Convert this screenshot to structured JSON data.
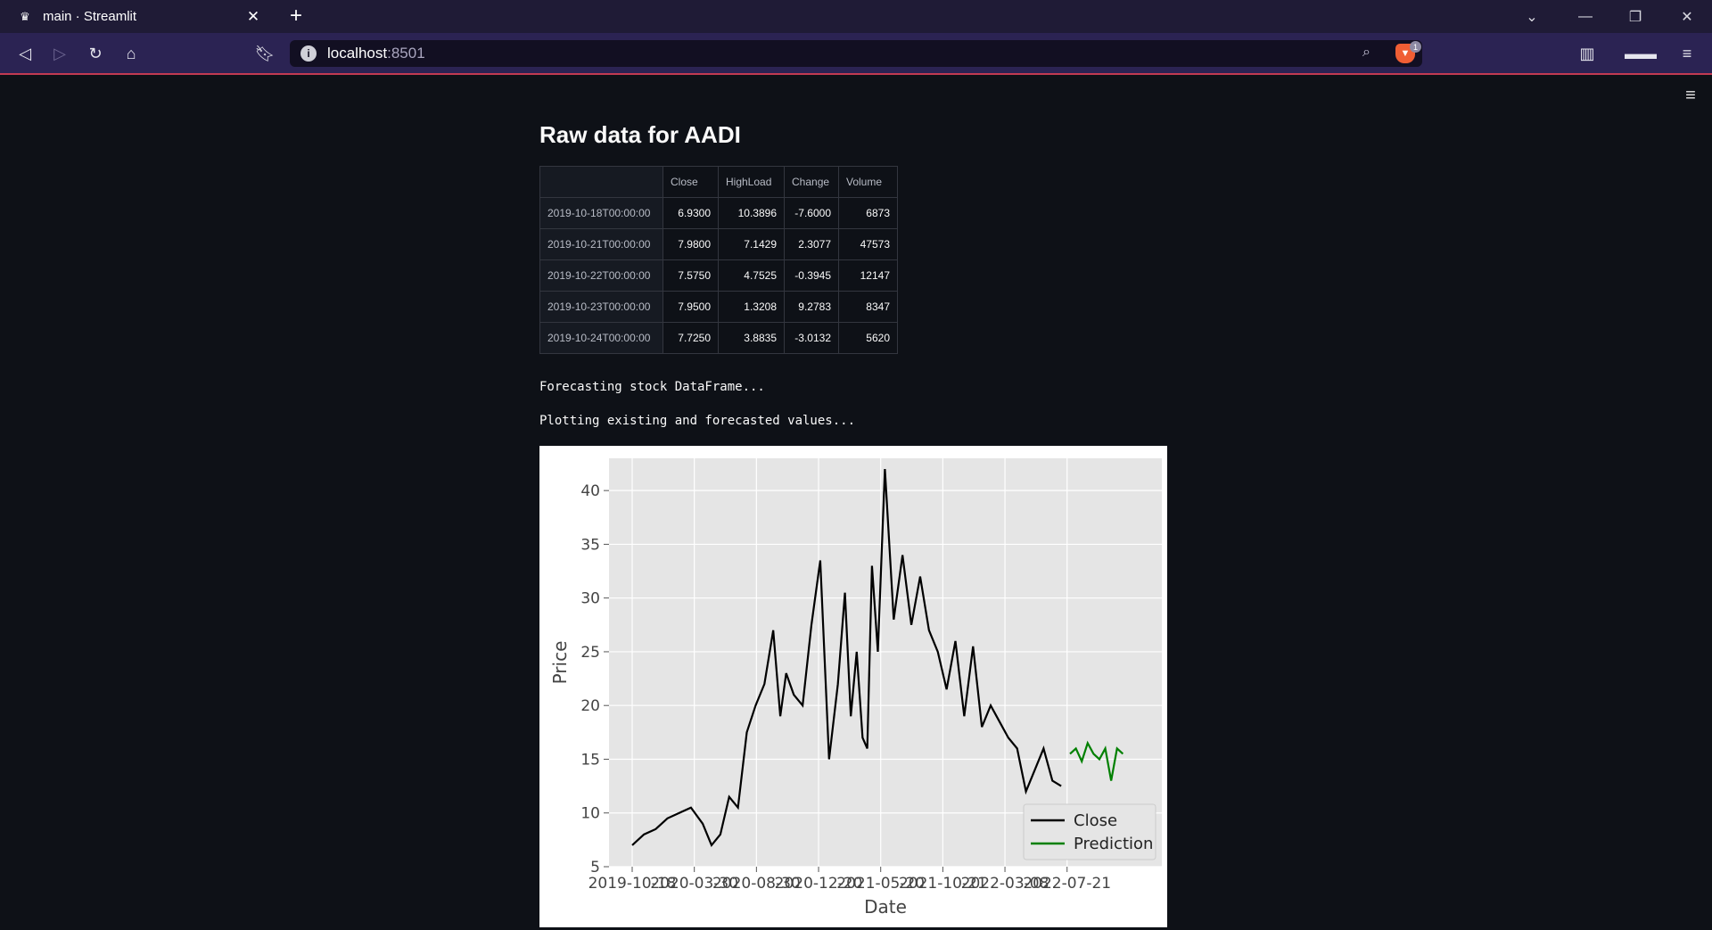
{
  "browser": {
    "tab_title": "main · Streamlit",
    "url_host": "localhost",
    "url_port": ":8501",
    "shield_count": "1"
  },
  "page": {
    "heading": "Raw data for AADI",
    "table": {
      "columns": [
        "",
        "Close",
        "HighLoad",
        "Change",
        "Volume"
      ],
      "rows": [
        [
          "2019-10-18T00:00:00",
          "6.9300",
          "10.3896",
          "-7.6000",
          "6873"
        ],
        [
          "2019-10-21T00:00:00",
          "7.9800",
          "7.1429",
          "2.3077",
          "47573"
        ],
        [
          "2019-10-22T00:00:00",
          "7.5750",
          "4.7525",
          "-0.3945",
          "12147"
        ],
        [
          "2019-10-23T00:00:00",
          "7.9500",
          "1.3208",
          "9.2783",
          "8347"
        ],
        [
          "2019-10-24T00:00:00",
          "7.7250",
          "3.8835",
          "-3.0132",
          "5620"
        ]
      ]
    },
    "status_forecasting": "Forecasting stock DataFrame...",
    "status_plotting": "Plotting existing and forecasted values..."
  },
  "chart_data": {
    "type": "line",
    "title": "",
    "xlabel": "Date",
    "ylabel": "Price",
    "ylim": [
      5,
      43
    ],
    "yticks": [
      5,
      10,
      15,
      20,
      25,
      30,
      35,
      40
    ],
    "xtick_labels": [
      "2019-10-18",
      "2020-03-30",
      "2020-08-30",
      "2020-12-20",
      "2021-05-20",
      "2021-10-21",
      "2022-03-08",
      "2022-07-21"
    ],
    "legend": [
      "Close",
      "Prediction"
    ],
    "legend_position": "bottom-right",
    "colors": {
      "Close": "#000000",
      "Prediction": "#008000",
      "plot_bg": "#e5e5e5",
      "grid": "#ffffff"
    },
    "series": [
      {
        "name": "Close",
        "x_index": [
          0,
          20,
          40,
          60,
          80,
          100,
          120,
          135,
          150,
          165,
          180,
          195,
          210,
          225,
          240,
          252,
          262,
          275,
          290,
          305,
          320,
          335,
          350,
          362,
          372,
          382,
          392,
          400,
          408,
          418,
          430,
          445,
          460,
          475,
          490,
          505,
          520,
          535,
          550,
          565,
          580,
          595,
          610,
          625,
          640,
          655,
          670,
          685,
          700,
          715,
          730
        ],
        "values": [
          7.0,
          8.0,
          8.5,
          9.5,
          10.0,
          10.5,
          9.0,
          7.0,
          8.0,
          11.5,
          10.5,
          17.5,
          20.0,
          22.0,
          27.0,
          19.0,
          23.0,
          21.0,
          20.0,
          27.5,
          33.5,
          15.0,
          22.0,
          30.5,
          19.0,
          25.0,
          17.0,
          16.0,
          33.0,
          25.0,
          42.0,
          28.0,
          34.0,
          27.5,
          32.0,
          27.0,
          25.0,
          21.5,
          26.0,
          19.0,
          25.5,
          18.0,
          20.0,
          18.5,
          17.0,
          16.0,
          12.0,
          14.0,
          16.0,
          13.0,
          12.5
        ]
      },
      {
        "name": "Prediction",
        "x_index": [
          745,
          755,
          765,
          775,
          785,
          795,
          805,
          815,
          825,
          835
        ],
        "values": [
          15.5,
          16.0,
          14.8,
          16.5,
          15.5,
          15.0,
          16.0,
          13.0,
          16.0,
          15.5
        ]
      }
    ]
  }
}
